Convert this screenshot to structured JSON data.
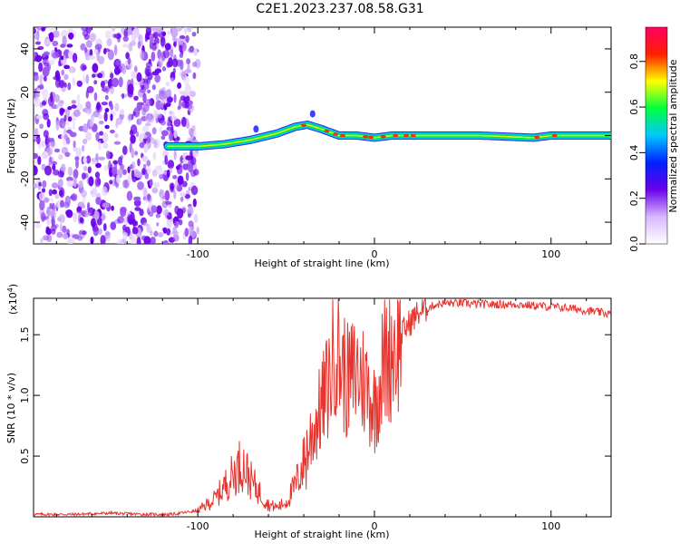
{
  "title": "C2E1.2023.237.08.58.G31",
  "colors": {
    "snr_line": "#e8342e",
    "background_noise": "#6a00e8",
    "colormap": [
      "#ffffff",
      "#d8b8ff",
      "#6a00e8",
      "#0020ff",
      "#00c8ff",
      "#00ff40",
      "#ffff00",
      "#ff2000",
      "#ff0060"
    ]
  },
  "chart_data": [
    {
      "type": "heatmap",
      "title": "C2E1.2023.237.08.58.G31",
      "xlabel": "Height of straight line (km)",
      "ylabel": "Frequency (Hz)",
      "xlim": [
        -193,
        134
      ],
      "ylim": [
        -50,
        50
      ],
      "x_ticks": [
        -100,
        0,
        100
      ],
      "y_ticks": [
        -40,
        -20,
        0,
        20,
        40
      ],
      "colorbar": {
        "label": "Normalized spectral amplitude",
        "range": [
          0,
          0.95
        ],
        "ticks": [
          "0.0",
          "0.2",
          "0.4",
          "0.6",
          "0.8"
        ]
      },
      "ridge": {
        "description": "strong signal trace near 0 Hz",
        "x": [
          -117,
          -100,
          -85,
          -70,
          -55,
          -45,
          -38,
          -30,
          -20,
          -10,
          0,
          10,
          30,
          60,
          90,
          100,
          134
        ],
        "freq_hz": [
          -5,
          -5,
          -4,
          -2,
          1,
          4,
          5,
          3,
          0,
          0,
          -1,
          0,
          0,
          0,
          -1,
          0,
          0
        ]
      },
      "grid": false
    },
    {
      "type": "line",
      "xlabel": "Height of straight line (km)",
      "ylabel": "SNR (10 * v/v)",
      "y_multiplier": "(x10^4)",
      "xlim": [
        -193,
        134
      ],
      "ylim": [
        0,
        1.8
      ],
      "x_ticks": [
        -100,
        0,
        100
      ],
      "y_ticks": [
        0.5,
        1.0,
        1.5
      ],
      "y_tick_labels": [
        "0.5",
        "1.0",
        "1.5"
      ],
      "series": [
        {
          "x": [
            -193,
            -170,
            -150,
            -130,
            -115,
            -100,
            -90,
            -85,
            -80,
            -75,
            -70,
            -65,
            -60,
            -55,
            -50,
            -45,
            -40,
            -35,
            -30,
            -25,
            -22,
            -20,
            -15,
            -10,
            -5,
            0,
            5,
            10,
            15,
            20,
            25,
            30,
            35,
            40,
            50,
            60,
            70,
            80,
            90,
            100,
            110,
            120,
            134
          ],
          "y": [
            0.02,
            0.02,
            0.03,
            0.02,
            0.02,
            0.05,
            0.15,
            0.25,
            0.35,
            0.45,
            0.3,
            0.2,
            0.1,
            0.08,
            0.12,
            0.25,
            0.45,
            0.7,
            0.9,
            1.15,
            1.5,
            1.3,
            1.1,
            1.2,
            1.1,
            0.9,
            1.25,
            1.4,
            1.5,
            1.6,
            1.68,
            1.72,
            1.75,
            1.76,
            1.76,
            1.75,
            1.75,
            1.75,
            1.74,
            1.73,
            1.72,
            1.7,
            1.67
          ]
        }
      ],
      "grid": false
    }
  ]
}
